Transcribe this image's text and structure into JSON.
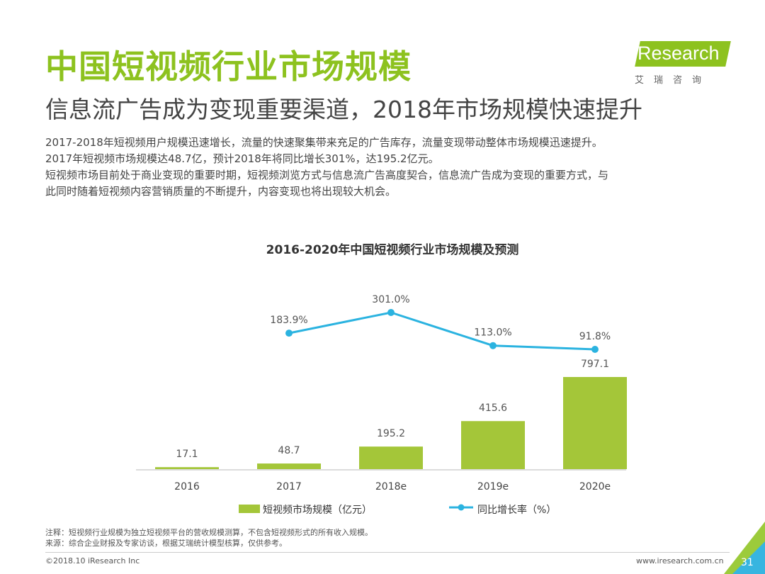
{
  "header": {
    "title": "中国短视频行业市场规模",
    "subtitle": "信息流广告成为变现重要渠道，2018年市场规模快速提升"
  },
  "logo": {
    "brand_i": "i",
    "brand_rest": "Research",
    "chinese": "艾瑞咨询"
  },
  "summary": {
    "line1": "2017-2018年短视频用户规模迅速增长，流量的快速聚集带来充足的广告库存，流量变现带动整体市场规模迅速提升。",
    "line2": "2017年短视频市场规模达48.7亿，预计2018年将同比增长301%，达195.2亿元。",
    "line3": "短视频市场目前处于商业变现的重要时期，短视频浏览方式与信息流广告高度契合，信息流广告成为变现的重要方式，与",
    "line4": "此同时随着短视频内容营销质量的不断提升，内容变现也将出现较大机会。"
  },
  "chart_data": {
    "type": "bar",
    "title": "2016-2020年中国短视频行业市场规模及预测",
    "categories": [
      "2016",
      "2017",
      "2018e",
      "2019e",
      "2020e"
    ],
    "series": [
      {
        "name": "短视频市场规模（亿元）",
        "type": "bar",
        "values": [
          17.1,
          48.7,
          195.2,
          415.6,
          797.1
        ],
        "labels": [
          "17.1",
          "48.7",
          "195.2",
          "415.6",
          "797.1"
        ],
        "color": "#a4c639"
      },
      {
        "name": "同比增长率（%）",
        "type": "line",
        "values": [
          null,
          183.9,
          301.0,
          113.0,
          91.8
        ],
        "labels": [
          "",
          "183.9%",
          "301.0%",
          "113.0%",
          "91.8%"
        ],
        "color": "#2bb3e0"
      }
    ],
    "legend_position": "bottom",
    "grid": false
  },
  "notes": {
    "note": "注释：短视频行业规模为独立短视频平台的营收规模测算，不包含短视频形式的所有收入规模。",
    "source": "来源：综合企业财报及专家访谈，根据艾瑞统计模型核算，仅供参考。"
  },
  "footer": {
    "copyright": "©2018.10 iResearch Inc",
    "website": "www.iresearch.com.cn",
    "page_number": "31"
  },
  "colors": {
    "accent_green": "#8dc21f",
    "bar_green": "#a4c639",
    "line_blue": "#2bb3e0",
    "corner_green": "#9ccb3b",
    "corner_blue": "#37b5e0"
  }
}
